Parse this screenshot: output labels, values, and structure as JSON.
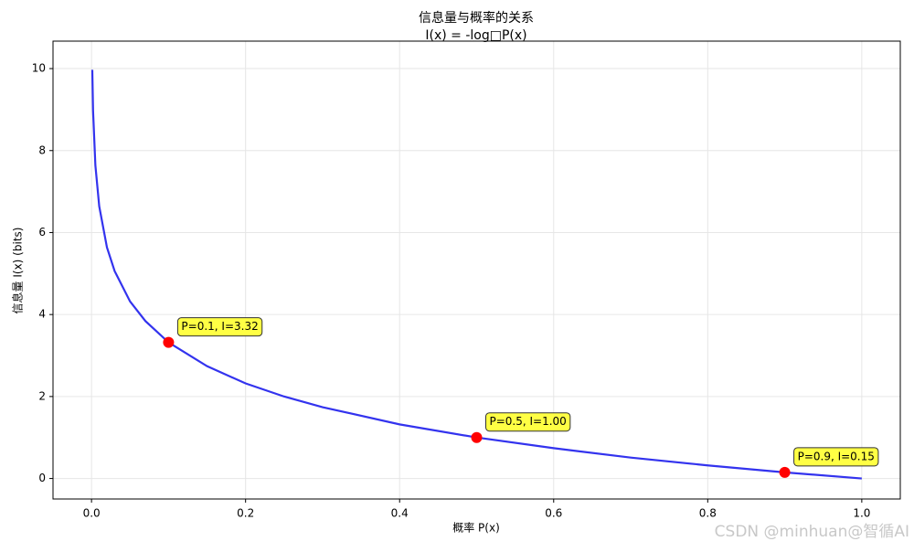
{
  "chart_data": {
    "type": "line",
    "title": "信息量与概率的关系",
    "subtitle": "I(x) = -log□P(x)",
    "x_label": "概率 P(x)",
    "y_label": "信息量 I(x) (bits)",
    "watermark": "CSDN @minhuan@智循AI",
    "xlim": [
      -0.05,
      1.05
    ],
    "ylim": [
      -0.5,
      10.67
    ],
    "xticks": [
      {
        "value": 0,
        "label": "0.0"
      },
      0.2,
      0.4,
      0.6,
      0.8,
      {
        "value": 1,
        "label": "1.0"
      }
    ],
    "yticks": [
      0,
      2,
      4,
      6,
      8,
      10
    ],
    "grid": true,
    "series": [
      {
        "type": "line",
        "color": "#3333ee",
        "x": [
          0.001,
          0.002,
          0.005,
          0.01,
          0.02,
          0.03,
          0.05,
          0.07,
          0.1,
          0.15,
          0.2,
          0.25,
          0.3,
          0.4,
          0.5,
          0.6,
          0.7,
          0.8,
          0.9,
          1.0
        ],
        "values": [
          9.97,
          8.97,
          7.64,
          6.64,
          5.64,
          5.06,
          4.32,
          3.84,
          3.32,
          2.74,
          2.32,
          2.0,
          1.74,
          1.32,
          1.0,
          0.74,
          0.51,
          0.32,
          0.15,
          0
        ]
      },
      {
        "type": "scatter",
        "color": "#ff0000",
        "x": [
          0.1,
          0.5,
          0.9
        ],
        "values": [
          3.32,
          1.0,
          0.15
        ],
        "value_labels": [
          "P=0.1, I=3.32",
          "P=0.5, I=1.00",
          "P=0.9, I=0.15"
        ]
      }
    ]
  }
}
